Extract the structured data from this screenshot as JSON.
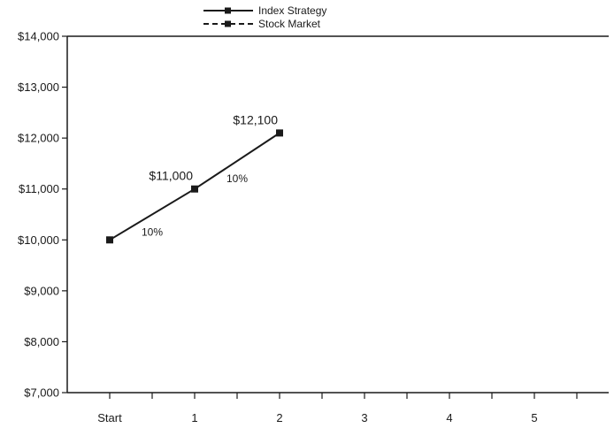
{
  "chart_data": {
    "type": "line",
    "title": "",
    "xlabel": "",
    "ylabel": "",
    "categories": [
      "Start",
      "1",
      "2",
      "3",
      "4",
      "5"
    ],
    "y_tick_labels": [
      "$7,000",
      "$8,000",
      "$9,000",
      "$10,000",
      "$11,000",
      "$12,000",
      "$13,000",
      "$14,000"
    ],
    "y_ticks": [
      7000,
      8000,
      9000,
      10000,
      11000,
      12000,
      13000,
      14000
    ],
    "ylim": [
      7000,
      14000
    ],
    "grid": false,
    "legend_position": "top-center",
    "series": [
      {
        "name": "Index Strategy",
        "line_style": "solid",
        "marker": "square",
        "values": [
          10000,
          11000,
          12100,
          null,
          null,
          null
        ]
      },
      {
        "name": "Stock Market",
        "line_style": "dashed",
        "marker": "square",
        "values": [
          null,
          null,
          null,
          null,
          null,
          null
        ]
      }
    ],
    "point_labels": [
      {
        "category_index": 1,
        "value": 11000,
        "text": "$11,000"
      },
      {
        "category_index": 2,
        "value": 12100,
        "text": "$12,100"
      }
    ],
    "segment_labels": [
      {
        "from_index": 0,
        "to_index": 1,
        "text": "10%"
      },
      {
        "from_index": 1,
        "to_index": 2,
        "text": "10%"
      }
    ],
    "colors": {
      "line": "#1a1a1a",
      "axis": "#1a1a1a",
      "background": "#ffffff"
    }
  }
}
